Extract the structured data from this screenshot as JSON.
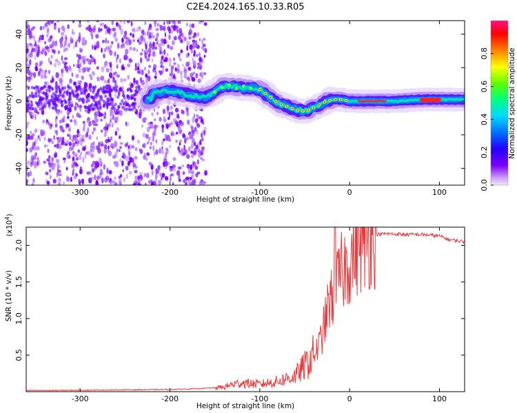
{
  "title": "C2E4.2024.165.10.33.R05",
  "chart_data": [
    {
      "type": "heatmap",
      "title": "C2E4.2024.165.10.33.R05",
      "xlabel": "Height of straight line (km)",
      "ylabel": "Frequency (Hz)",
      "xlim": [
        -360,
        128
      ],
      "ylim": [
        -50,
        48
      ],
      "xticks": [
        -300,
        -200,
        -100,
        0,
        100
      ],
      "yticks": [
        -40,
        -20,
        0,
        20,
        40
      ],
      "colorbar": {
        "label": "Normalized spectral amplitude",
        "range": [
          0.0,
          1.0
        ],
        "ticks": [
          0.0,
          0.2,
          0.4,
          0.6,
          0.8
        ],
        "colormap": [
          "#f2e6ff",
          "#d0a8ff",
          "#7a00ff",
          "#2200ff",
          "#0070ff",
          "#00d8ff",
          "#00ff80",
          "#60ff00",
          "#ffff00",
          "#ff8000",
          "#ff0000",
          "#ff1080"
        ]
      },
      "frequency_track": [
        {
          "x": -220,
          "y": 5
        },
        {
          "x": -200,
          "y": 6
        },
        {
          "x": -180,
          "y": 4
        },
        {
          "x": -160,
          "y": 2
        },
        {
          "x": -150,
          "y": 6
        },
        {
          "x": -140,
          "y": 9
        },
        {
          "x": -130,
          "y": 9
        },
        {
          "x": -120,
          "y": 8
        },
        {
          "x": -110,
          "y": 8
        },
        {
          "x": -100,
          "y": 7
        },
        {
          "x": -90,
          "y": 3
        },
        {
          "x": -80,
          "y": -1
        },
        {
          "x": -70,
          "y": -3
        },
        {
          "x": -60,
          "y": -5
        },
        {
          "x": -50,
          "y": -6
        },
        {
          "x": -40,
          "y": -4
        },
        {
          "x": -30,
          "y": -1
        },
        {
          "x": -20,
          "y": 1
        },
        {
          "x": -10,
          "y": 1
        },
        {
          "x": 0,
          "y": 0
        },
        {
          "x": 20,
          "y": 0
        },
        {
          "x": 50,
          "y": 0
        },
        {
          "x": 80,
          "y": 1
        },
        {
          "x": 100,
          "y": 1
        },
        {
          "x": 128,
          "y": 1
        }
      ]
    },
    {
      "type": "line",
      "xlabel": "Height of straight line (km)",
      "ylabel": "SNR (10 * v/v)",
      "y_multiplier": "(x10",
      "y_multiplier_exp": "4",
      "xlim": [
        -360,
        128
      ],
      "ylim": [
        0,
        22500
      ],
      "xticks": [
        -300,
        -200,
        -100,
        0,
        100
      ],
      "yticks": [
        5000,
        10000,
        15000,
        20000
      ],
      "ytick_labels": [
        "0.5",
        "1.0",
        "1.5",
        "2.0"
      ],
      "series": [
        {
          "color": "#e8383a",
          "x": [
            -360,
            -300,
            -250,
            -200,
            -170,
            -140,
            -130,
            -120,
            -100,
            -80,
            -70,
            -60,
            -50,
            -40,
            -35,
            -30,
            -25,
            -20,
            -15,
            -10,
            0,
            10,
            20,
            30,
            40,
            60,
            80,
            100,
            110,
            128
          ],
          "y": [
            150,
            200,
            250,
            300,
            400,
            600,
            1000,
            1200,
            1000,
            1400,
            1800,
            2200,
            3500,
            5000,
            6000,
            8000,
            11000,
            13000,
            14500,
            16000,
            18000,
            20000,
            21000,
            21500,
            21600,
            21500,
            21500,
            21300,
            20800,
            20500
          ]
        }
      ]
    }
  ]
}
